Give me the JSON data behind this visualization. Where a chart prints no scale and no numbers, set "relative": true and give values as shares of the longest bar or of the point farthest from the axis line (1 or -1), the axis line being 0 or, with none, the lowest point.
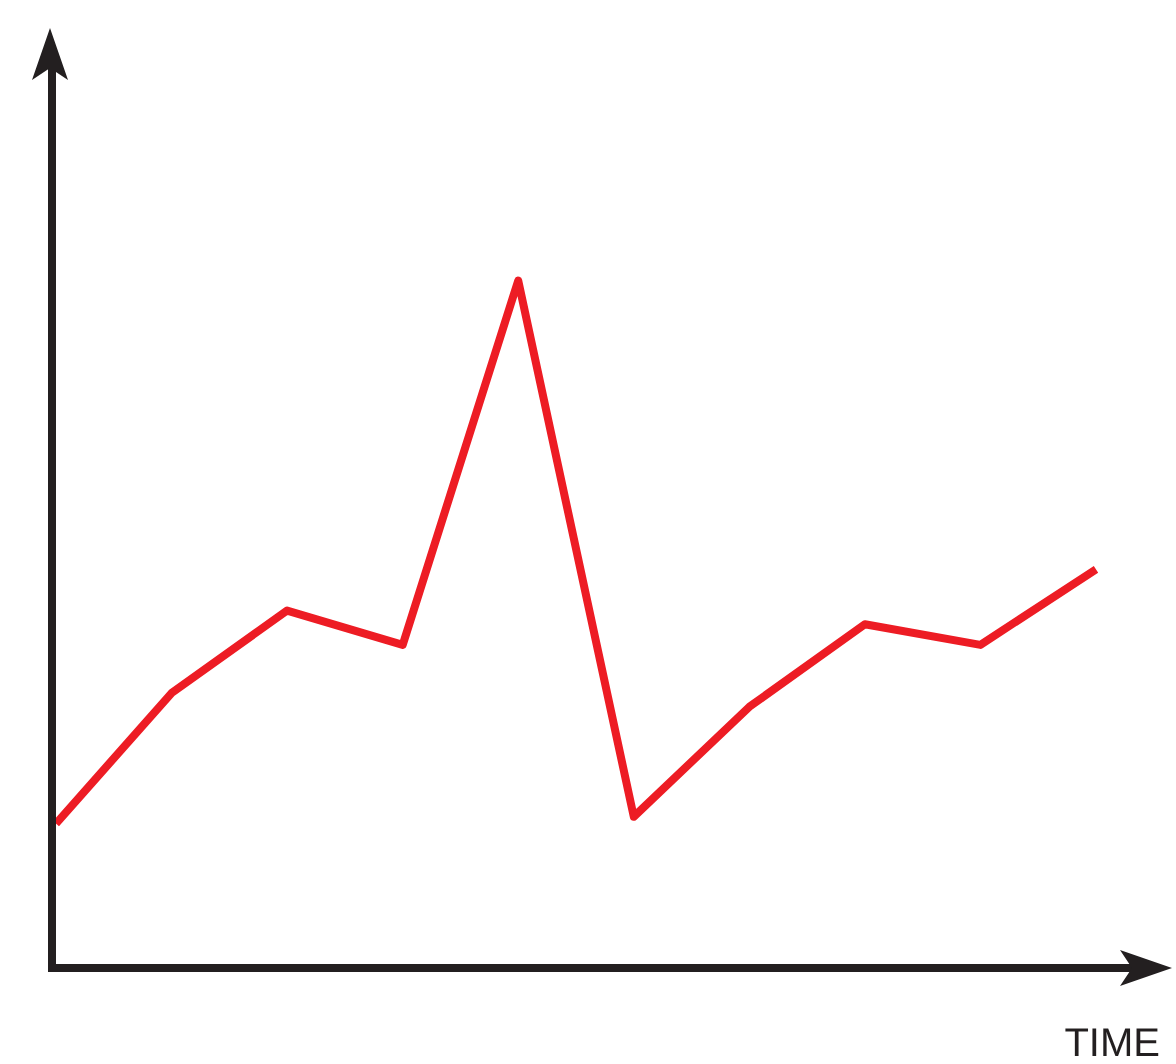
{
  "chart_data": {
    "type": "line",
    "xlabel": "TIME",
    "relative": true,
    "marker": "none",
    "categories": [
      null,
      null,
      null,
      null,
      null,
      null,
      null,
      null,
      null,
      null
    ],
    "series": [
      {
        "color": "#ed1c24",
        "values": [
          0.21,
          0.4,
          0.52,
          0.47,
          1,
          0.22,
          0.38,
          0.5,
          0.47,
          0.58
        ]
      }
    ]
  }
}
